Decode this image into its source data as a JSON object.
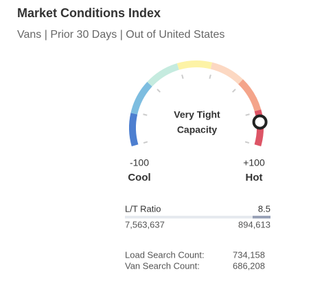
{
  "chart_data": {
    "type": "gauge",
    "title": "Market Conditions Index",
    "subtitle": "Vans | Prior 30 Days | Out of United States",
    "value": 80,
    "value_label_lines": [
      "Very Tight",
      "Capacity"
    ],
    "xlim": [
      -100,
      100
    ],
    "xticks": [
      -100,
      {
        "value": 100,
        "label": "+100"
      }
    ],
    "end_labels": [
      "Cool",
      "Hot"
    ],
    "zone_colors": [
      "#4d7fd0",
      "#7dbde0",
      "#c5ebdf",
      "#fdf3a6",
      "#fcd8c2",
      "#f4a48a",
      "#dd5566"
    ]
  },
  "stats": {
    "ratio_label": "L/T Ratio",
    "ratio_value": "8.5",
    "loads": "7,563,637",
    "trucks": "894,613",
    "rows": [
      {
        "label": "Load Search Count:",
        "value": "734,158"
      },
      {
        "label": "Van Search Count:",
        "value": "686,208"
      }
    ]
  }
}
